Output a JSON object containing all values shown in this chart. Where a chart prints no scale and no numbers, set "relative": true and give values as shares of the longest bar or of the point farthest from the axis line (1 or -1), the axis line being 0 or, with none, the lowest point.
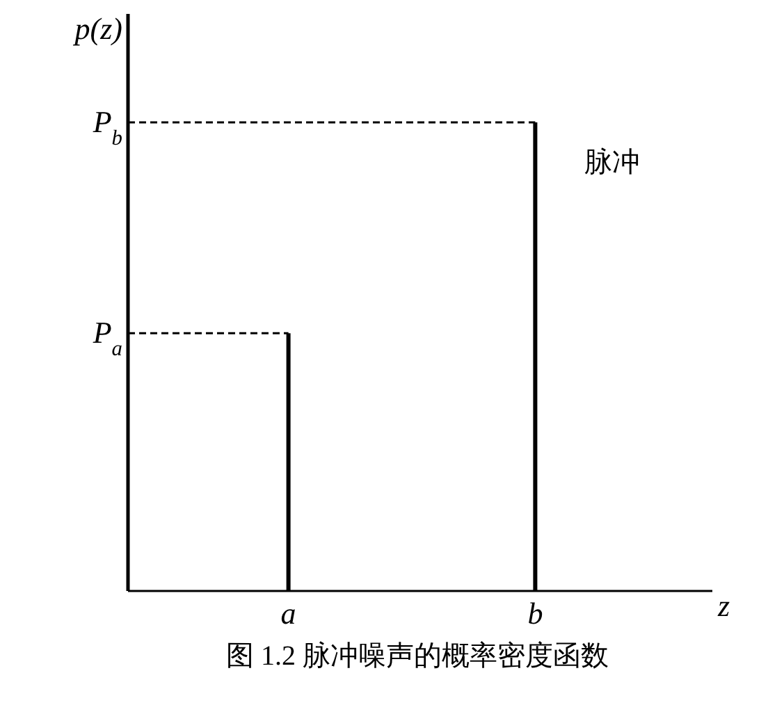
{
  "chart_data": {
    "type": "bar",
    "relative": true,
    "categories": [
      "a",
      "b"
    ],
    "values": [
      0.55,
      1
    ],
    "color": "#000000",
    "ylabel": "p(z)",
    "xlabel": "z",
    "title": "图 1.2  脉冲噪声的概率密度函数",
    "annotations": [
      "P$_{a}$",
      "P$_{b}$",
      "脉冲"
    ]
  }
}
